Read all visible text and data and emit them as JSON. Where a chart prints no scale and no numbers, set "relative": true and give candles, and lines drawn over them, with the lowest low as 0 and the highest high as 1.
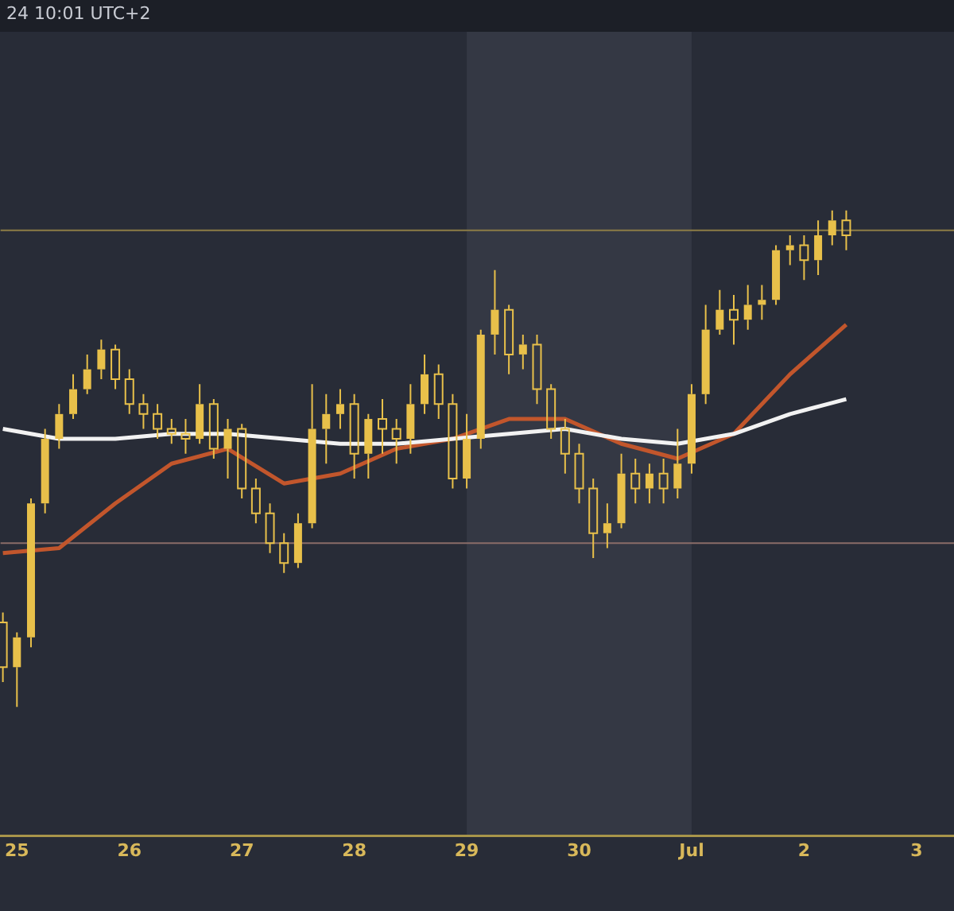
{
  "chart_data": {
    "type": "candlestick",
    "relative": true,
    "annotations": [
      "24 10:01 UTC+2"
    ],
    "x": [
      "--06-24T21:00",
      "--06-25T00:00",
      "--06-25T03:00",
      "--06-25T06:00",
      "--06-25T09:00",
      "--06-25T12:00",
      "--06-25T15:00",
      "--06-25T18:00",
      "--06-25T21:00",
      "--06-26T00:00",
      "--06-26T03:00",
      "--06-26T06:00",
      "--06-26T09:00",
      "--06-26T12:00",
      "--06-26T15:00",
      "--06-26T18:00",
      "--06-26T21:00",
      "--06-27T00:00",
      "--06-27T03:00",
      "--06-27T06:00",
      "--06-27T09:00",
      "--06-27T12:00",
      "--06-27T15:00",
      "--06-27T18:00",
      "--06-27T21:00",
      "--06-28T00:00",
      "--06-28T03:00",
      "--06-28T06:00",
      "--06-28T09:00",
      "--06-28T12:00",
      "--06-28T15:00",
      "--06-28T18:00",
      "--06-28T21:00",
      "--06-29T00:00",
      "--06-29T03:00",
      "--06-29T06:00",
      "--06-29T09:00",
      "--06-29T12:00",
      "--06-29T15:00",
      "--06-29T18:00",
      "--06-29T21:00",
      "--06-30T00:00",
      "--06-30T03:00",
      "--06-30T06:00",
      "--06-30T09:00",
      "--06-30T12:00",
      "--06-30T15:00",
      "--06-30T18:00",
      "--06-30T21:00",
      "--07-01T00:00",
      "--07-01T03:00",
      "--07-01T06:00",
      "--07-01T09:00",
      "--07-01T12:00",
      "--07-01T15:00",
      "--07-01T18:00",
      "--07-01T21:00",
      "--07-02T00:00",
      "--07-02T03:00",
      "--07-02T06:00",
      "--07-02T09:00"
    ],
    "ohlc": [
      [
        0.17,
        0.19,
        0.05,
        0.08
      ],
      [
        0.08,
        0.15,
        0,
        0.14
      ],
      [
        0.14,
        0.42,
        0.12,
        0.41
      ],
      [
        0.41,
        0.56,
        0.39,
        0.54
      ],
      [
        0.54,
        0.61,
        0.52,
        0.59
      ],
      [
        0.59,
        0.67,
        0.58,
        0.64
      ],
      [
        0.64,
        0.71,
        0.63,
        0.68
      ],
      [
        0.68,
        0.74,
        0.66,
        0.72
      ],
      [
        0.72,
        0.73,
        0.64,
        0.66
      ],
      [
        0.66,
        0.68,
        0.59,
        0.61
      ],
      [
        0.61,
        0.63,
        0.56,
        0.59
      ],
      [
        0.59,
        0.61,
        0.54,
        0.56
      ],
      [
        0.56,
        0.58,
        0.53,
        0.55
      ],
      [
        0.55,
        0.58,
        0.51,
        0.54
      ],
      [
        0.54,
        0.65,
        0.53,
        0.61
      ],
      [
        0.61,
        0.62,
        0.5,
        0.52
      ],
      [
        0.52,
        0.58,
        0.46,
        0.56
      ],
      [
        0.56,
        0.57,
        0.42,
        0.44
      ],
      [
        0.44,
        0.46,
        0.37,
        0.39
      ],
      [
        0.39,
        0.41,
        0.31,
        0.33
      ],
      [
        0.33,
        0.35,
        0.27,
        0.29
      ],
      [
        0.29,
        0.39,
        0.28,
        0.37
      ],
      [
        0.37,
        0.65,
        0.36,
        0.56
      ],
      [
        0.56,
        0.63,
        0.49,
        0.59
      ],
      [
        0.59,
        0.64,
        0.56,
        0.61
      ],
      [
        0.61,
        0.63,
        0.46,
        0.51
      ],
      [
        0.51,
        0.59,
        0.46,
        0.58
      ],
      [
        0.58,
        0.62,
        0.51,
        0.56
      ],
      [
        0.56,
        0.58,
        0.49,
        0.54
      ],
      [
        0.54,
        0.65,
        0.51,
        0.61
      ],
      [
        0.61,
        0.71,
        0.59,
        0.67
      ],
      [
        0.67,
        0.69,
        0.58,
        0.61
      ],
      [
        0.61,
        0.63,
        0.44,
        0.46
      ],
      [
        0.46,
        0.59,
        0.44,
        0.54
      ],
      [
        0.54,
        0.76,
        0.52,
        0.75
      ],
      [
        0.75,
        0.88,
        0.71,
        0.8
      ],
      [
        0.8,
        0.81,
        0.67,
        0.71
      ],
      [
        0.71,
        0.75,
        0.68,
        0.73
      ],
      [
        0.73,
        0.75,
        0.61,
        0.64
      ],
      [
        0.64,
        0.65,
        0.54,
        0.56
      ],
      [
        0.56,
        0.58,
        0.47,
        0.51
      ],
      [
        0.51,
        0.53,
        0.41,
        0.44
      ],
      [
        0.44,
        0.46,
        0.3,
        0.35
      ],
      [
        0.35,
        0.41,
        0.32,
        0.37
      ],
      [
        0.37,
        0.51,
        0.36,
        0.47
      ],
      [
        0.47,
        0.5,
        0.41,
        0.44
      ],
      [
        0.44,
        0.49,
        0.41,
        0.47
      ],
      [
        0.47,
        0.5,
        0.41,
        0.44
      ],
      [
        0.44,
        0.56,
        0.42,
        0.49
      ],
      [
        0.49,
        0.65,
        0.47,
        0.63
      ],
      [
        0.63,
        0.81,
        0.61,
        0.76
      ],
      [
        0.76,
        0.84,
        0.75,
        0.8
      ],
      [
        0.8,
        0.83,
        0.73,
        0.78
      ],
      [
        0.78,
        0.85,
        0.76,
        0.81
      ],
      [
        0.81,
        0.85,
        0.78,
        0.82
      ],
      [
        0.82,
        0.93,
        0.81,
        0.92
      ],
      [
        0.92,
        0.95,
        0.89,
        0.93
      ],
      [
        0.93,
        0.95,
        0.86,
        0.9
      ],
      [
        0.9,
        0.98,
        0.87,
        0.95
      ],
      [
        0.95,
        1.0,
        0.93,
        0.98
      ],
      [
        0.98,
        1.0,
        0.92,
        0.95
      ]
    ],
    "color": "#e8c04a",
    "series": [
      {
        "type": "line",
        "color": "#f2f2f2",
        "x": [
          "--06-24T21:00",
          "--06-25T09:00",
          "--06-25T21:00",
          "--06-26T09:00",
          "--06-26T21:00",
          "--06-27T09:00",
          "--06-27T21:00",
          "--06-28T09:00",
          "--06-28T21:00",
          "--06-29T09:00",
          "--06-29T21:00",
          "--06-30T09:00",
          "--06-30T21:00",
          "--07-01T09:00",
          "--07-01T21:00",
          "--07-02T09:00"
        ],
        "values": [
          0.56,
          0.54,
          0.54,
          0.55,
          0.55,
          0.54,
          0.53,
          0.53,
          0.54,
          0.55,
          0.56,
          0.54,
          0.53,
          0.55,
          0.59,
          0.62
        ]
      },
      {
        "type": "line",
        "color": "#c2562c",
        "x": [
          "--06-24T21:00",
          "--06-25T09:00",
          "--06-25T21:00",
          "--06-26T09:00",
          "--06-26T21:00",
          "--06-27T09:00",
          "--06-27T21:00",
          "--06-28T09:00",
          "--06-28T21:00",
          "--06-29T09:00",
          "--06-29T21:00",
          "--06-30T09:00",
          "--06-30T21:00",
          "--07-01T09:00",
          "--07-01T21:00",
          "--07-02T09:00"
        ],
        "values": [
          0.31,
          0.32,
          0.41,
          0.49,
          0.52,
          0.45,
          0.47,
          0.52,
          0.54,
          0.58,
          0.58,
          0.53,
          0.5,
          0.55,
          0.67,
          0.77
        ]
      }
    ],
    "xlim": [
      "--06-24T20:30",
      "--07-03T08:00"
    ],
    "xticks": [
      {
        "value": "--06-25",
        "label": "25"
      },
      {
        "value": "--06-26",
        "label": "26"
      },
      {
        "value": "--06-27",
        "label": "27"
      },
      {
        "value": "--06-28",
        "label": "28"
      },
      {
        "value": "--06-29",
        "label": "29"
      },
      {
        "value": "--06-30",
        "label": "30"
      },
      {
        "value": "--07-01",
        "label": "Jul"
      },
      {
        "value": "--07-02",
        "label": "2"
      },
      {
        "value": "--07-03",
        "label": "3"
      }
    ],
    "ref_lines": [
      {
        "axis": "y",
        "value": 0.96,
        "color": "#8c7c46"
      },
      {
        "axis": "y",
        "value": 0.33,
        "color": "#8a6c68"
      }
    ],
    "bands": [
      {
        "axis": "x",
        "from": "--06-29",
        "to": "--07-01",
        "color": "#343844"
      }
    ],
    "grid": false,
    "legend": false
  }
}
